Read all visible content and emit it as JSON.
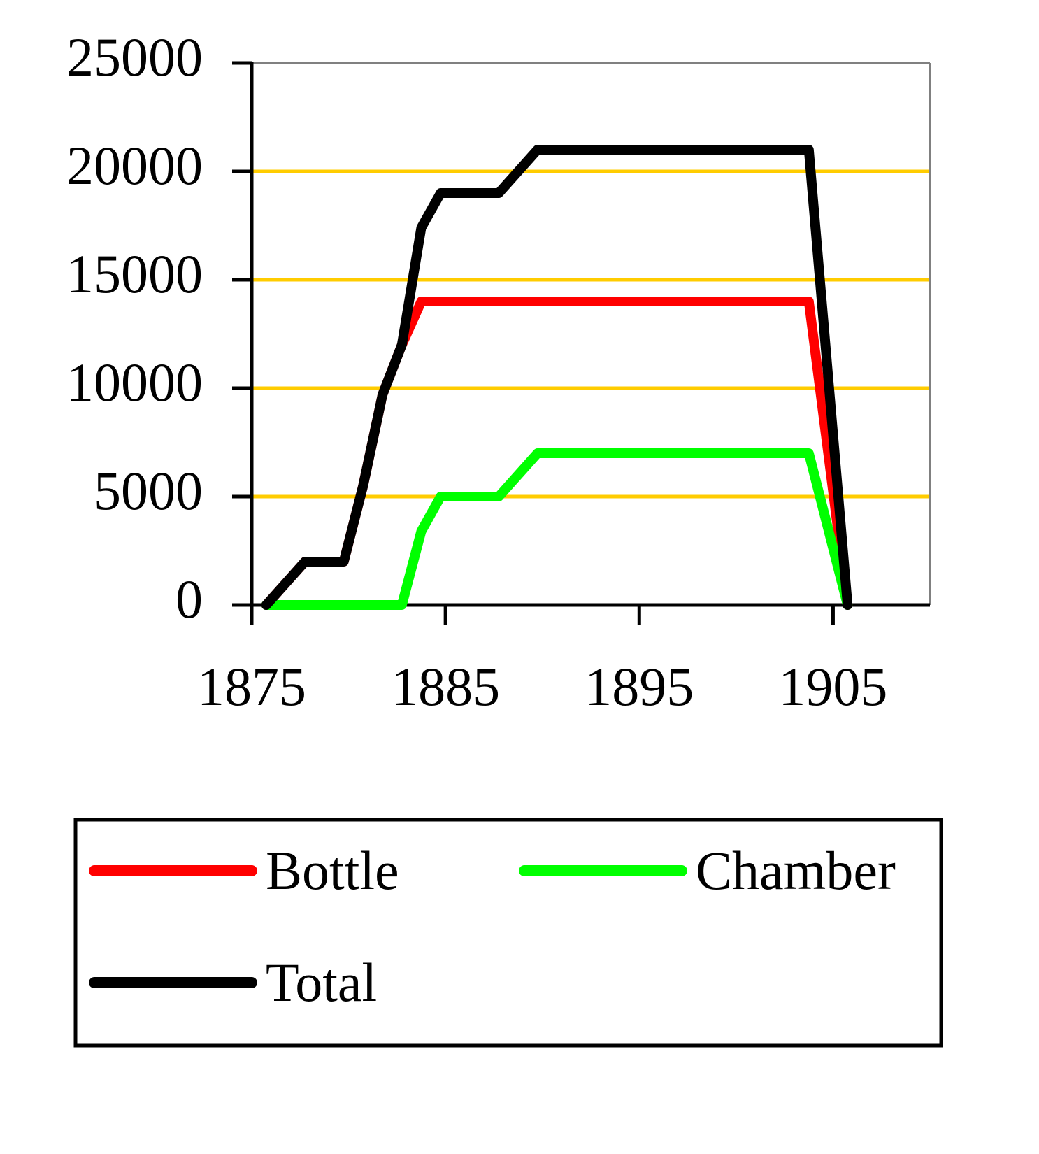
{
  "chart_data": {
    "type": "line",
    "x": [
      1875.75,
      1876.75,
      1877.75,
      1879.75,
      1880.75,
      1881.75,
      1882.75,
      1883.75,
      1884.75,
      1887.75,
      1889.75,
      1903.75,
      1905.75
    ],
    "series": [
      {
        "name": "Bottle",
        "color": "#ff0000",
        "values": [
          0,
          1000,
          2000,
          2000,
          5500,
          9700,
          12000,
          14000,
          14000,
          14000,
          14000,
          14000,
          0
        ]
      },
      {
        "name": "Chamber",
        "color": "#00ff00",
        "values": [
          0,
          0,
          0,
          0,
          0,
          0,
          0,
          3400,
          5000,
          5000,
          7000,
          7000,
          0
        ]
      },
      {
        "name": "Total",
        "color": "#000000",
        "values": [
          0,
          1000,
          2000,
          2000,
          5500,
          9700,
          12000,
          17400,
          19000,
          19000,
          21000,
          21000,
          0
        ]
      }
    ],
    "xlim": [
      1875,
      1910
    ],
    "xticks": [
      1875,
      1885,
      1895,
      1905
    ],
    "ylim": [
      0,
      25000
    ],
    "yticks": [
      0,
      5000,
      10000,
      15000,
      20000,
      25000
    ],
    "grid": true,
    "grid_color": "#ffcc00",
    "legend": "bottom"
  }
}
